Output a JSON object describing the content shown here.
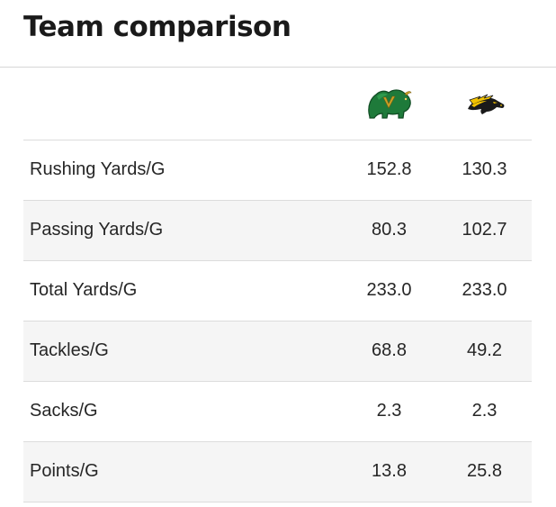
{
  "title": "Team comparison",
  "teams": [
    {
      "logo_icon": "bison-logo-icon",
      "colors": {
        "primary": "#1e7a3a",
        "accent": "#c9a227"
      }
    },
    {
      "logo_icon": "mustang-logo-icon",
      "colors": {
        "primary": "#1a1a1a",
        "accent": "#f2c300"
      }
    }
  ],
  "rows": [
    {
      "label": "Rushing Yards/G",
      "a": "152.8",
      "b": "130.3"
    },
    {
      "label": "Passing Yards/G",
      "a": "80.3",
      "b": "102.7"
    },
    {
      "label": "Total Yards/G",
      "a": "233.0",
      "b": "233.0"
    },
    {
      "label": "Tackles/G",
      "a": "68.8",
      "b": "49.2"
    },
    {
      "label": "Sacks/G",
      "a": "2.3",
      "b": "2.3"
    },
    {
      "label": "Points/G",
      "a": "13.8",
      "b": "25.8"
    }
  ]
}
